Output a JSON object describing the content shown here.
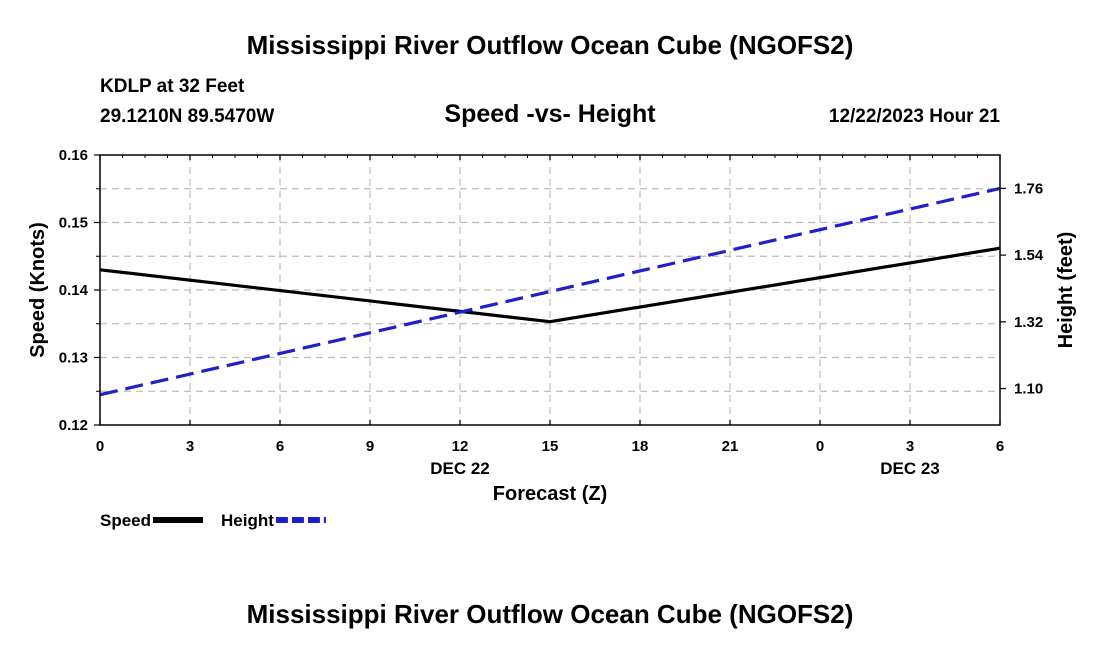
{
  "header": {
    "title": "Mississippi River Outflow Ocean Cube (NGOFS2)",
    "station": "KDLP at 32 Feet",
    "coords": "29.1210N  89.5470W",
    "subtitle": "Speed -vs- Height",
    "datetime": "12/22/2023 Hour 21"
  },
  "footer": {
    "title": "Mississippi River Outflow Ocean Cube (NGOFS2)"
  },
  "chart_data": {
    "type": "line",
    "title": "Speed -vs- Height",
    "xlabel": "Forecast (Z)",
    "ylabel": "Speed (Knots)",
    "y2label": "Height (feet)",
    "x": [
      0,
      15,
      30
    ],
    "x_tick_labels": [
      "0",
      "3",
      "6",
      "9",
      "12",
      "15",
      "18",
      "21",
      "0",
      "3",
      "6"
    ],
    "date_labels": [
      {
        "label": "DEC 22",
        "tick_index": 4
      },
      {
        "label": "DEC 23",
        "tick_index": 9
      }
    ],
    "ylim": [
      0.12,
      0.16
    ],
    "y_ticks": [
      "0.12",
      "0.13",
      "0.14",
      "0.15",
      "0.16"
    ],
    "y2lim": [
      0.98,
      1.87
    ],
    "y2_ticks": [
      "1.10",
      "1.32",
      "1.54",
      "1.76"
    ],
    "series": [
      {
        "name": "Speed",
        "axis": "left",
        "color": "#000000",
        "dash": "solid",
        "x": [
          0,
          15,
          30
        ],
        "values": [
          0.143,
          0.1353,
          0.1462
        ]
      },
      {
        "name": "Height",
        "axis": "right",
        "color": "#1f1fcc",
        "dash": "dashed",
        "x": [
          0,
          30
        ],
        "values": [
          1.08,
          1.76
        ]
      }
    ],
    "grid": true,
    "legend": "bottom-left"
  }
}
